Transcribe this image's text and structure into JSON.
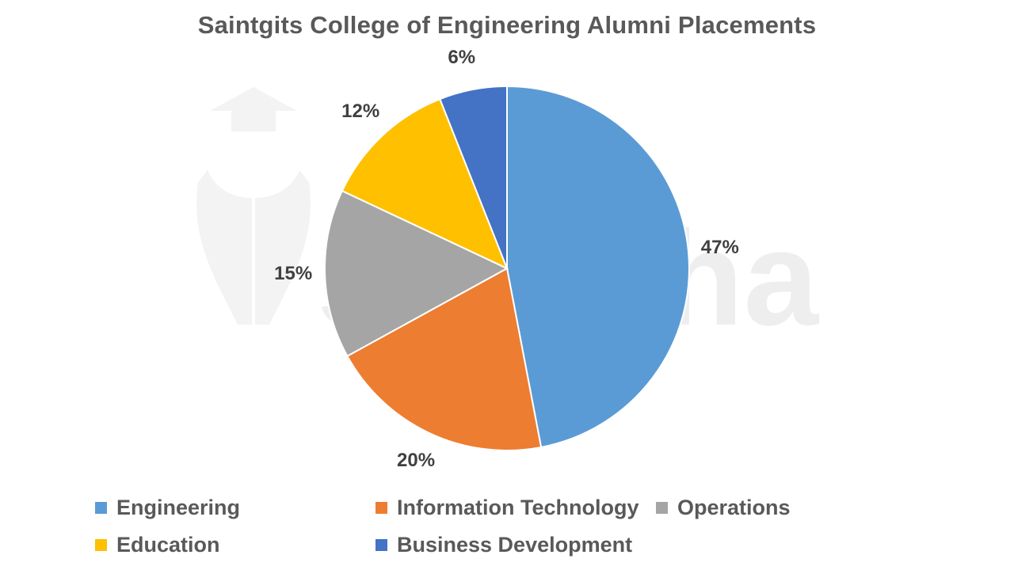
{
  "chart_data": {
    "type": "pie",
    "title": "Saintgits College of Engineering Alumni Placements",
    "categories": [
      "Engineering",
      "Information Technology",
      "Operations",
      "Education",
      "Business Development"
    ],
    "values": [
      47,
      20,
      15,
      12,
      6
    ],
    "labels": [
      "47%",
      "20%",
      "15%",
      "12%",
      "6%"
    ],
    "colors": [
      "#5B9BD5",
      "#ED7D31",
      "#A5A5A5",
      "#FFC000",
      "#4472C4"
    ],
    "legend_position": "bottom",
    "start_angle": "12 o'clock, clockwise"
  },
  "watermark": {
    "text": "shiksha"
  }
}
